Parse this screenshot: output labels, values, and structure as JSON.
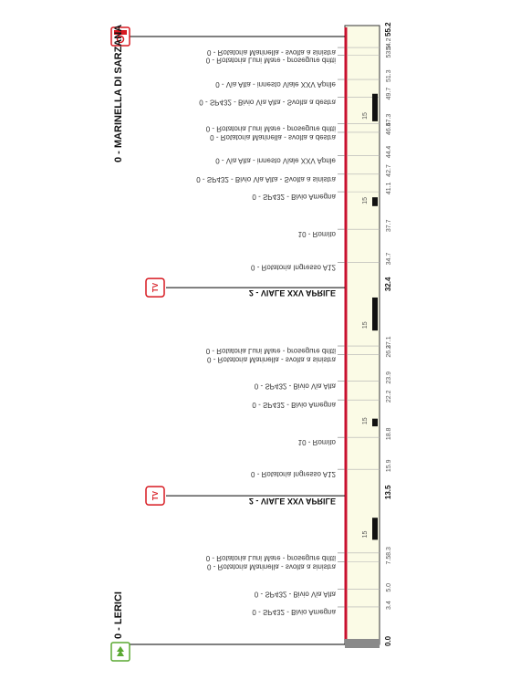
{
  "route": {
    "start": {
      "label": "0 - LERICI",
      "km": "0.0"
    },
    "finish": {
      "label": "0 - MARINELLA DI SARZANA",
      "km": "55.2"
    },
    "intermediate_sprints": [
      {
        "label": "2 - VIALE XXV APRILE",
        "km": "13.5",
        "badge": "TV"
      },
      {
        "label": "2 - VIALE XXV APRILE",
        "km": "32.4",
        "badge": "TV"
      }
    ],
    "waypoints": [
      {
        "km": "3.4",
        "label": "0 - SP432 - Bivio Amegna",
        "value": 3.4
      },
      {
        "km": "5.0",
        "label": "0 - SP432 - Bivio Via Alta",
        "value": 5.0
      },
      {
        "km": "7.5",
        "label": "0 - Rotatoria Marinella - svolta a sinistra",
        "value": 7.5
      },
      {
        "km": "8.3",
        "label": "0 - Rotatoria Luni Mare - prosegure dritti",
        "value": 8.3
      },
      {
        "km": "15.9",
        "label": "0 - Rotatoria Ingresso A12",
        "value": 15.9
      },
      {
        "km": "18.8",
        "label": "10 - Romito",
        "value": 18.8
      },
      {
        "km": "22.2",
        "label": "0 - SP432 - Bivio Amegna",
        "value": 22.2
      },
      {
        "km": "23.9",
        "label": "0 - SP432 - Bivio Via Alta",
        "value": 23.9
      },
      {
        "km": "26.3",
        "label": "0 - Rotatoria Marinella - svolta a sinistra",
        "value": 26.3
      },
      {
        "km": "27.1",
        "label": "0 - Rotatoria Luni Mare - prosegure dritti",
        "value": 27.1
      },
      {
        "km": "34.7",
        "label": "0 - Rotatoria Ingresso A12",
        "value": 34.7
      },
      {
        "km": "37.7",
        "label": "10 - Romito",
        "value": 37.7
      },
      {
        "km": "41.1",
        "label": "0 - SP432 - Bivio Amegna",
        "value": 41.1
      },
      {
        "km": "42.7",
        "label": "0 - SP432 - Bivio Via Alta - Svolta a sinistra",
        "value": 42.7
      },
      {
        "km": "44.4",
        "label": "0 - Via Alta - innesto Viale XXV Aprile",
        "value": 44.4
      },
      {
        "km": "46.5",
        "label": "0 - Rotatoria Marinella - svolta a destra",
        "value": 46.5
      },
      {
        "km": "47.3",
        "label": "0 - Rotatoria Luni Mare - prosegure dritti",
        "value": 47.3
      },
      {
        "km": "49.7",
        "label": "0 - SP432 - Bivio Via Alta - Svolta a destra",
        "value": 49.7
      },
      {
        "km": "51.3",
        "label": "0 - Via Alta - innesto Viale XXV Aprile",
        "value": 51.3
      },
      {
        "km": "53.5",
        "label": "0 - Rotatoria Luni Mare - prosegure dritti",
        "value": 53.5
      },
      {
        "km": "54.2",
        "label": "0 - Rotatoria Marinella - svolta a sinistra",
        "value": 54.2
      }
    ],
    "gradient_marks": [
      {
        "text": "15",
        "from": 9.5,
        "to": 11.5
      },
      {
        "text": "15",
        "from": 19.8,
        "to": 20.5
      },
      {
        "text": "15",
        "from": 28.5,
        "to": 31.5
      },
      {
        "text": "15",
        "from": 39.8,
        "to": 40.6
      },
      {
        "text": "15",
        "from": 47.5,
        "to": 50.0
      }
    ],
    "total_km": 55.2
  },
  "colors": {
    "route_line": "#c8102e",
    "panel": "#fbfbe6",
    "badge": "#d71920",
    "start_badge": "#5aa832"
  }
}
